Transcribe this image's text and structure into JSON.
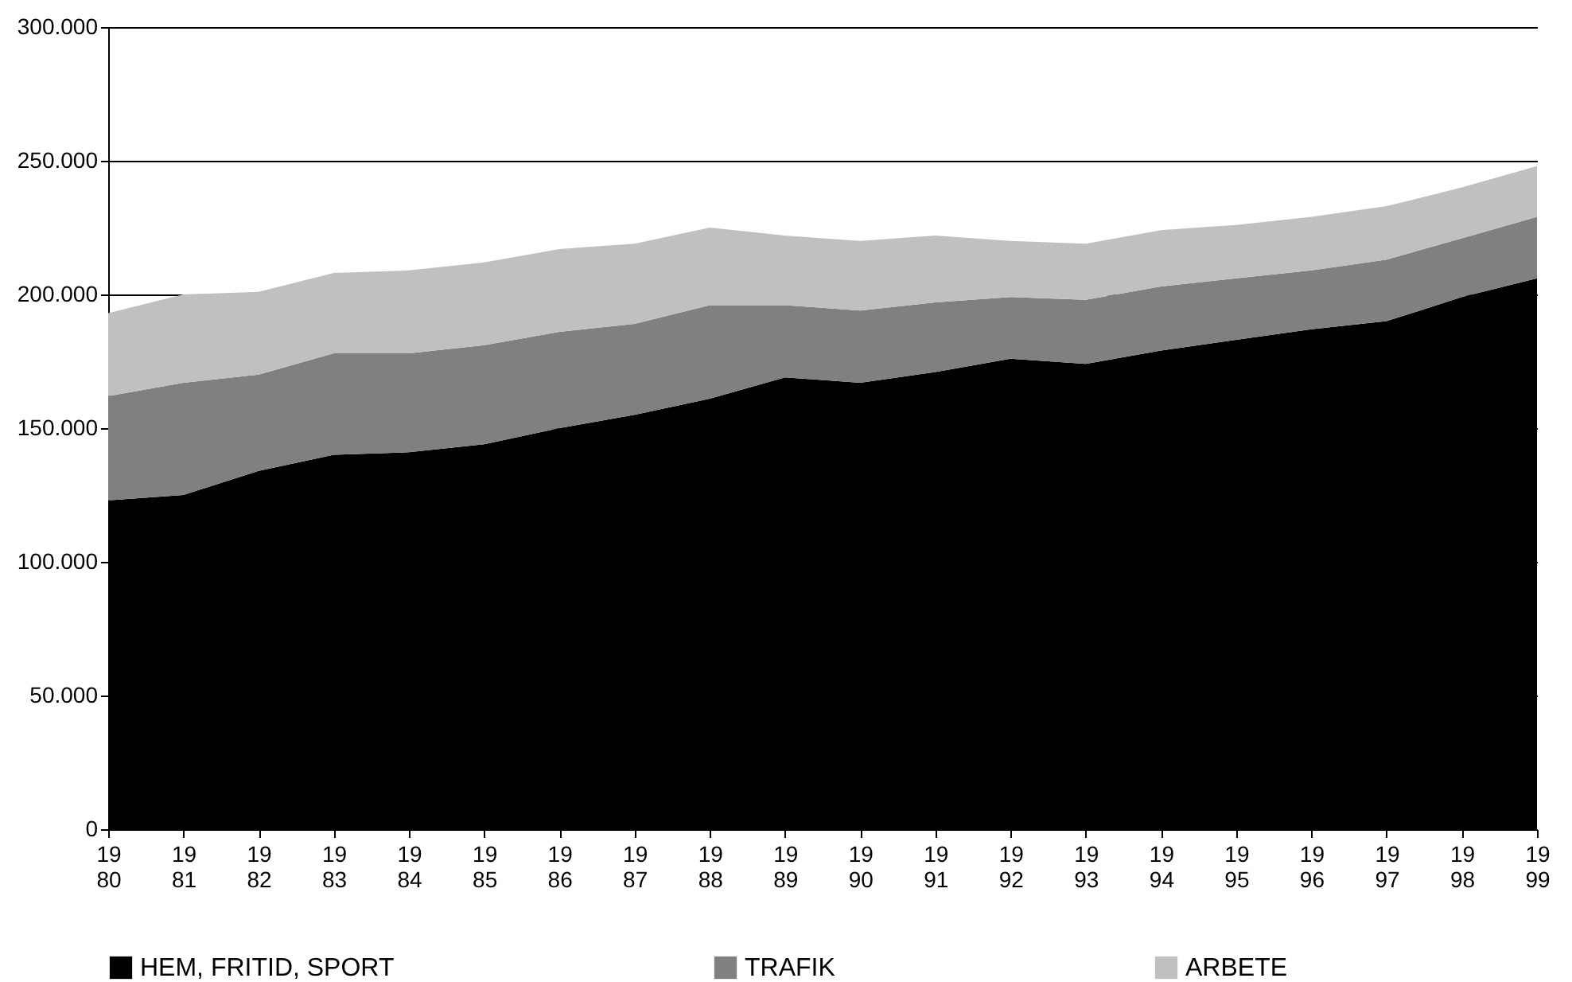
{
  "chart_data": {
    "type": "area",
    "stacked": true,
    "categories": [
      "1980",
      "1981",
      "1982",
      "1983",
      "1984",
      "1985",
      "1986",
      "1987",
      "1988",
      "1989",
      "1990",
      "1991",
      "1992",
      "1993",
      "1994",
      "1995",
      "1996",
      "1997",
      "1998",
      "1999"
    ],
    "series": [
      {
        "name": "HEM, FRITID, SPORT",
        "color": "#000000",
        "values": [
          123000,
          125000,
          134000,
          140000,
          141000,
          144000,
          150000,
          155000,
          161000,
          169000,
          167000,
          171000,
          176000,
          174000,
          179000,
          183000,
          187000,
          190000,
          199000,
          206000
        ]
      },
      {
        "name": "TRAFIK",
        "color": "#808080",
        "values": [
          39000,
          42000,
          36000,
          38000,
          37000,
          37000,
          36000,
          34000,
          35000,
          27000,
          27000,
          26000,
          23000,
          24000,
          24000,
          23000,
          22000,
          23000,
          22000,
          23000
        ]
      },
      {
        "name": "ARBETE",
        "color": "#c0c0c0",
        "values": [
          31000,
          33000,
          31000,
          30000,
          31000,
          31000,
          31000,
          30000,
          29000,
          26000,
          26000,
          25000,
          21000,
          21000,
          21000,
          20000,
          20000,
          20000,
          19000,
          19000
        ]
      }
    ],
    "ylim": [
      0,
      300000
    ],
    "yticks": [
      {
        "value": 0,
        "label": "0"
      },
      {
        "value": 50000,
        "label": "50.000"
      },
      {
        "value": 100000,
        "label": "100.000"
      },
      {
        "value": 150000,
        "label": "150.000"
      },
      {
        "value": 200000,
        "label": "200.000"
      },
      {
        "value": 250000,
        "label": "250.000"
      },
      {
        "value": 300000,
        "label": "300.000"
      }
    ],
    "grid": "y",
    "legend": "bottom"
  }
}
